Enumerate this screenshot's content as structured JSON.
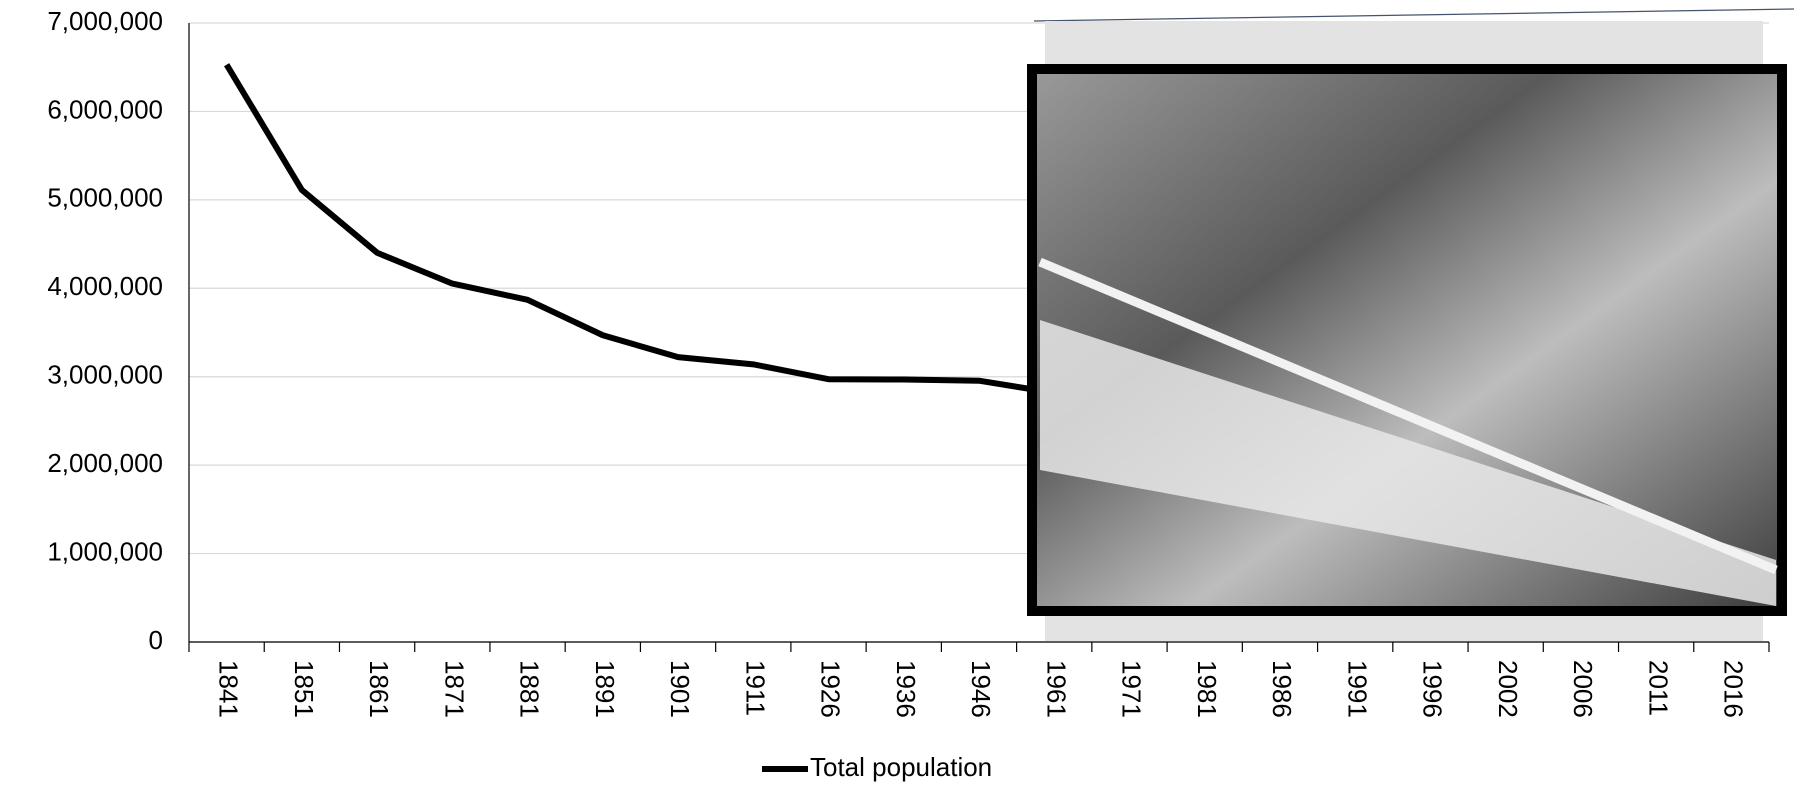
{
  "chart_data": {
    "type": "line",
    "categories": [
      "1841",
      "1851",
      "1861",
      "1871",
      "1881",
      "1891",
      "1901",
      "1911",
      "1926",
      "1936",
      "1946",
      "1961",
      "1971",
      "1981",
      "1986",
      "1991",
      "1996",
      "2002",
      "2006",
      "2011",
      "2016"
    ],
    "series": [
      {
        "name": "Total population",
        "color": "#000000",
        "values": [
          6529000,
          5112000,
          4402000,
          4053000,
          3870000,
          3469000,
          3222000,
          3140000,
          2972000,
          2968000,
          2955000,
          2818000,
          null,
          null,
          null,
          null,
          null,
          null,
          null,
          null,
          null
        ]
      }
    ],
    "ylim": [
      0,
      7000000
    ],
    "yticks": [
      0,
      {
        "value": 1000000,
        "label": "1,000,000"
      },
      {
        "value": 2000000,
        "label": "2,000,000"
      },
      {
        "value": 3000000,
        "label": "3,000,000"
      },
      {
        "value": 4000000,
        "label": "4,000,000"
      },
      {
        "value": 5000000,
        "label": "5,000,000"
      },
      {
        "value": 6000000,
        "label": "6,000,000"
      },
      {
        "value": 7000000,
        "label": "7,000,000"
      }
    ],
    "grid": true,
    "legend": "bottom"
  }
}
